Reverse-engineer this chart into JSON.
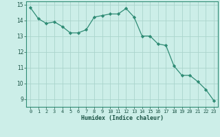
{
  "x": [
    0,
    1,
    2,
    3,
    4,
    5,
    6,
    7,
    8,
    9,
    10,
    11,
    12,
    13,
    14,
    15,
    16,
    17,
    18,
    19,
    20,
    21,
    22,
    23
  ],
  "y": [
    14.8,
    14.1,
    13.8,
    13.9,
    13.6,
    13.2,
    13.2,
    13.4,
    14.2,
    14.3,
    14.4,
    14.4,
    14.75,
    14.2,
    13.0,
    13.0,
    12.5,
    12.4,
    11.1,
    10.5,
    10.5,
    10.1,
    9.6,
    8.9
  ],
  "xlabel": "Humidex (Indice chaleur)",
  "xlim": [
    -0.5,
    23.5
  ],
  "ylim": [
    8.5,
    15.2
  ],
  "yticks": [
    9,
    10,
    11,
    12,
    13,
    14,
    15
  ],
  "xtick_labels": [
    "0",
    "1",
    "2",
    "3",
    "4",
    "5",
    "6",
    "7",
    "8",
    "9",
    "10",
    "11",
    "12",
    "13",
    "14",
    "15",
    "16",
    "17",
    "18",
    "19",
    "20",
    "21",
    "22",
    "23"
  ],
  "line_color": "#2e8b74",
  "marker_color": "#2e8b74",
  "bg_color": "#cceee8",
  "grid_color": "#aad4cc",
  "xlabel_color": "#1a5244",
  "tick_color": "#1a5244",
  "spine_color": "#2e8b74"
}
